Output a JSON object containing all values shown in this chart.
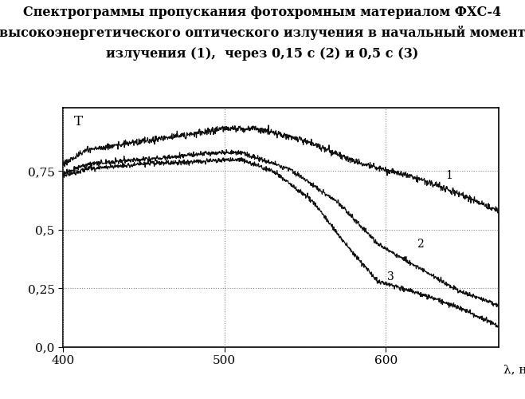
{
  "title_line1": "Спектрограммы пропускания фотохромным материалом ФХС-4",
  "title_line2": "высокоэнергетического оптического излучения в начальный момент",
  "title_line3": "излучения (1),  через 0,15 с (2) и 0,5 с (3)",
  "xlabel": "λ, нм",
  "ylabel": "T",
  "xlim": [
    400,
    670
  ],
  "ylim": [
    0.0,
    1.02
  ],
  "yticks": [
    0.0,
    0.25,
    0.5,
    0.75
  ],
  "ytick_labels": [
    "0,0",
    "0,25",
    "0,5",
    "0,75"
  ],
  "xticks": [
    400,
    500,
    600
  ],
  "background_color": "#ffffff",
  "curve_color": "#111111",
  "figsize": [
    6.59,
    5.0
  ],
  "dpi": 100
}
